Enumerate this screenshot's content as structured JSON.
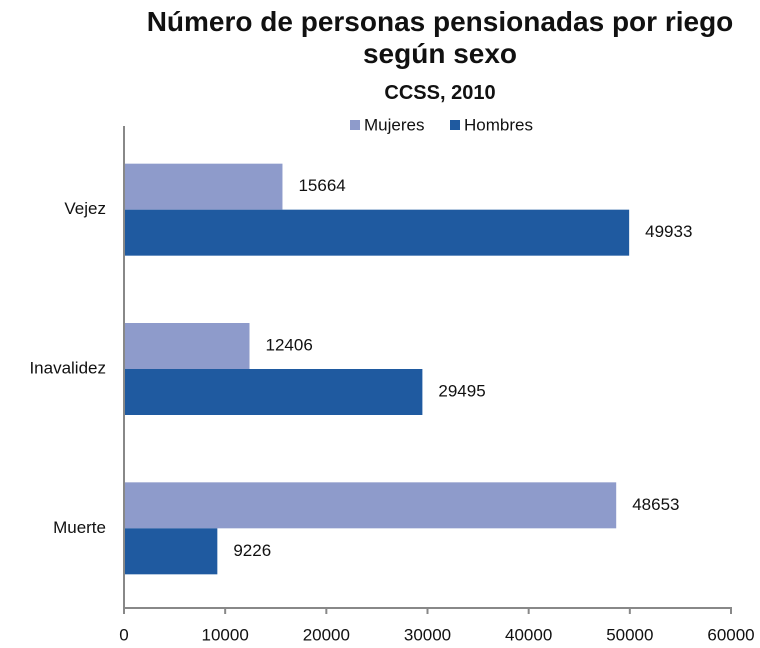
{
  "chart_data": {
    "type": "barh",
    "title": "Número de personas pensionadas por riego según sexo",
    "subtitle": "CCSS, 2010",
    "categories": [
      "Vejez",
      "Inavalidez",
      "Muerte"
    ],
    "series": [
      {
        "name": "Mujeres",
        "color": "#8e9bcb",
        "values": [
          15664,
          12406,
          48653
        ]
      },
      {
        "name": "Hombres",
        "color": "#1f5aa0",
        "values": [
          49933,
          29495,
          9226
        ]
      }
    ],
    "xlim": [
      0,
      60000
    ],
    "xticks": [
      0,
      10000,
      20000,
      30000,
      40000,
      50000,
      60000
    ],
    "legend": "top"
  }
}
